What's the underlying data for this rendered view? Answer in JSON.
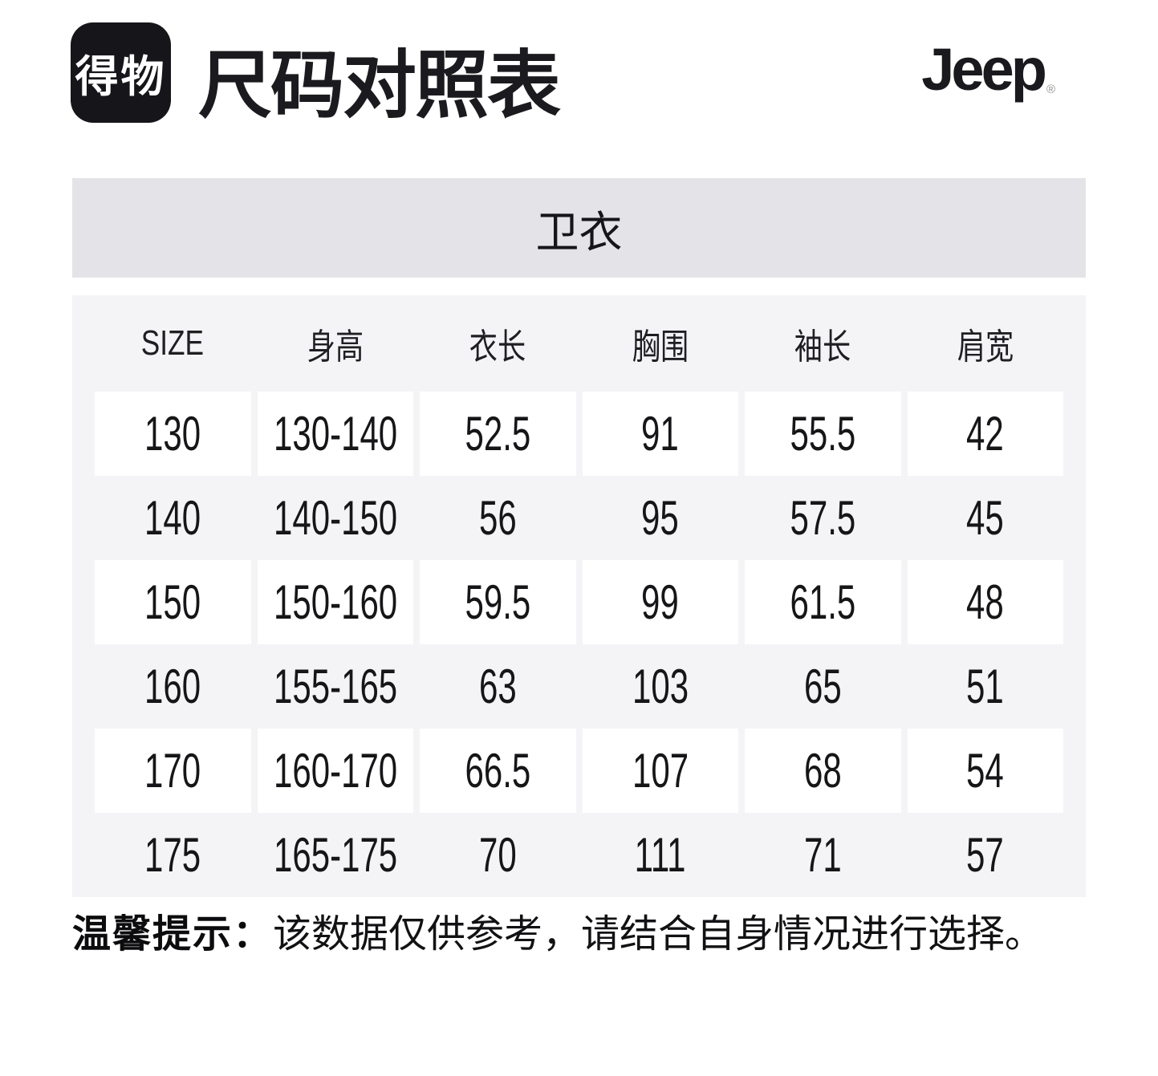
{
  "header": {
    "brand_logo_text": "得物",
    "title": "尺码对照表",
    "partner_logo_text": "Jeep",
    "partner_logo_reg": "®"
  },
  "category": {
    "label": "卫衣"
  },
  "size_chart": {
    "columns": [
      "SIZE",
      "身高",
      "衣长",
      "胸围",
      "袖长",
      "肩宽"
    ],
    "rows": [
      [
        "130",
        "130-140",
        "52.5",
        "91",
        "55.5",
        "42"
      ],
      [
        "140",
        "140-150",
        "56",
        "95",
        "57.5",
        "45"
      ],
      [
        "150",
        "150-160",
        "59.5",
        "99",
        "61.5",
        "48"
      ],
      [
        "160",
        "155-165",
        "63",
        "103",
        "65",
        "51"
      ],
      [
        "170",
        "160-170",
        "66.5",
        "107",
        "68",
        "54"
      ],
      [
        "175",
        "165-175",
        "70",
        "111",
        "71",
        "57"
      ]
    ]
  },
  "footer": {
    "tip_label": "温馨提示：",
    "tip_text": "该数据仅供参考，请结合自身情况进行选择。"
  },
  "colors": {
    "brand_logo_bg": "#16161a",
    "category_bar_bg": "#e4e4e8",
    "table_bg": "#f4f4f6",
    "row_highlight_bg": "#ffffff",
    "text": "#1a1a1a"
  }
}
